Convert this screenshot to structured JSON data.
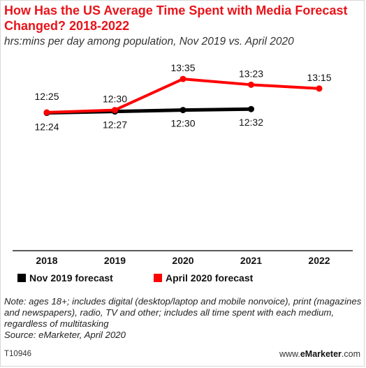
{
  "header": {
    "title": "How Has the US Average Time Spent with Media Forecast Changed? 2018-2022",
    "subtitle": "hrs:mins per day among population, Nov 2019 vs. April 2020"
  },
  "chart_data": {
    "type": "line",
    "categories": [
      "2018",
      "2019",
      "2020",
      "2021",
      "2022"
    ],
    "value_unit": "minutes per day (labels shown as hrs:mins)",
    "series": [
      {
        "name": "Nov 2019 forecast",
        "color": "#000000",
        "values": [
          744,
          747,
          750,
          752,
          null
        ],
        "labels": [
          "12:24",
          "12:27",
          "12:30",
          "12:32",
          null
        ]
      },
      {
        "name": "April 2020 forecast",
        "color": "#ff0000",
        "values": [
          745,
          750,
          815,
          803,
          795
        ],
        "labels": [
          "12:25",
          "12:30",
          "13:35",
          "13:23",
          "13:15"
        ]
      }
    ],
    "ylim": [
      460,
      840
    ],
    "grid": false,
    "legend_position": "bottom"
  },
  "note": {
    "text": "Note: ages 18+; includes digital (desktop/laptop and mobile nonvoice), print (magazines and newspapers), radio, TV and other; includes all time spent with each medium, regardless of multitasking",
    "source": "Source: eMarketer, April 2020"
  },
  "footer": {
    "chart_id": "T10946",
    "brand_prefix": "www.",
    "brand_name": "eMarketer",
    "brand_suffix": ".com"
  }
}
